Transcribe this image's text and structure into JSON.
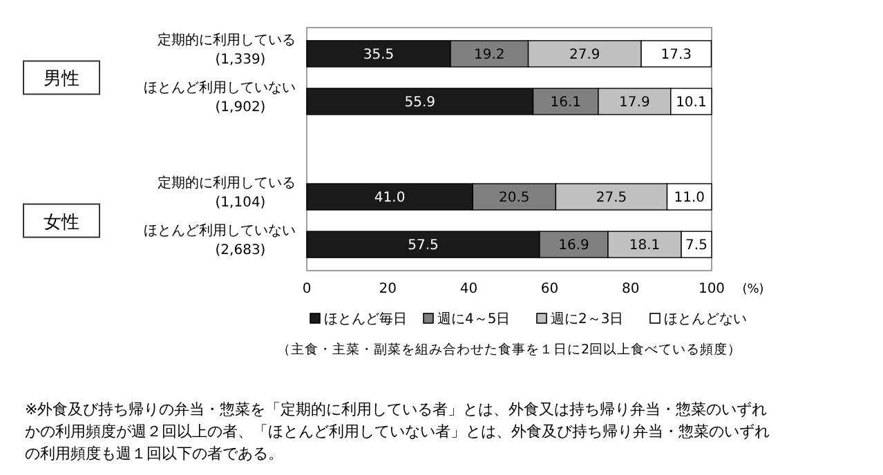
{
  "chart_data": {
    "type": "bar",
    "orientation": "horizontal",
    "stacked": true,
    "categories": [
      "定期的に利用している\n(1,339)",
      "ほとんど利用していない\n(1,902)",
      null,
      "定期的に利用している\n(1,104)",
      "ほとんど利用していない\n(2,683)"
    ],
    "series": [
      {
        "name": "ほとんど毎日",
        "color": "#1a1a1a",
        "values": [
          35.5,
          55.9,
          null,
          41.0,
          57.5
        ],
        "value_labels": [
          "35.5",
          "55.9",
          null,
          "41.0",
          "57.5"
        ]
      },
      {
        "name": "週に4～5日",
        "color": "#808080",
        "values": [
          19.2,
          16.1,
          null,
          20.5,
          16.9
        ],
        "value_labels": [
          "19.2",
          "16.1",
          null,
          "20.5",
          "16.9"
        ]
      },
      {
        "name": "週に2～3日",
        "color": "#c0c0c0",
        "values": [
          27.9,
          17.9,
          null,
          27.5,
          18.1
        ],
        "value_labels": [
          "27.9",
          "17.9",
          null,
          "27.5",
          "18.1"
        ]
      },
      {
        "name": "ほとんどない",
        "color": "#ffffff",
        "values": [
          17.3,
          10.1,
          null,
          11.0,
          7.5
        ],
        "value_labels": [
          "17.3",
          "10.1",
          null,
          "11.0",
          "7.5"
        ]
      }
    ],
    "xlim": [
      0,
      100
    ],
    "xticks": [
      0,
      20,
      40,
      60,
      80,
      100
    ],
    "xlabel": "(%)",
    "legend": "bottom",
    "grid": false,
    "annotations": [
      "男性",
      "女性",
      "（主食・主菜・副菜を組み合わせた食事を１日に2回以上食べている頻度）",
      "※外食及び持ち帰りの弁当・惣菜を「定期的に利用している者」とは、外食又は持ち帰り弁当・惣菜のいずれかの利用頻度が週２回以上の者、「ほとんど利用していない者」とは、外食及び持ち帰り弁当・惣菜のいずれの利用頻度も週１回以下の者である。"
    ]
  }
}
